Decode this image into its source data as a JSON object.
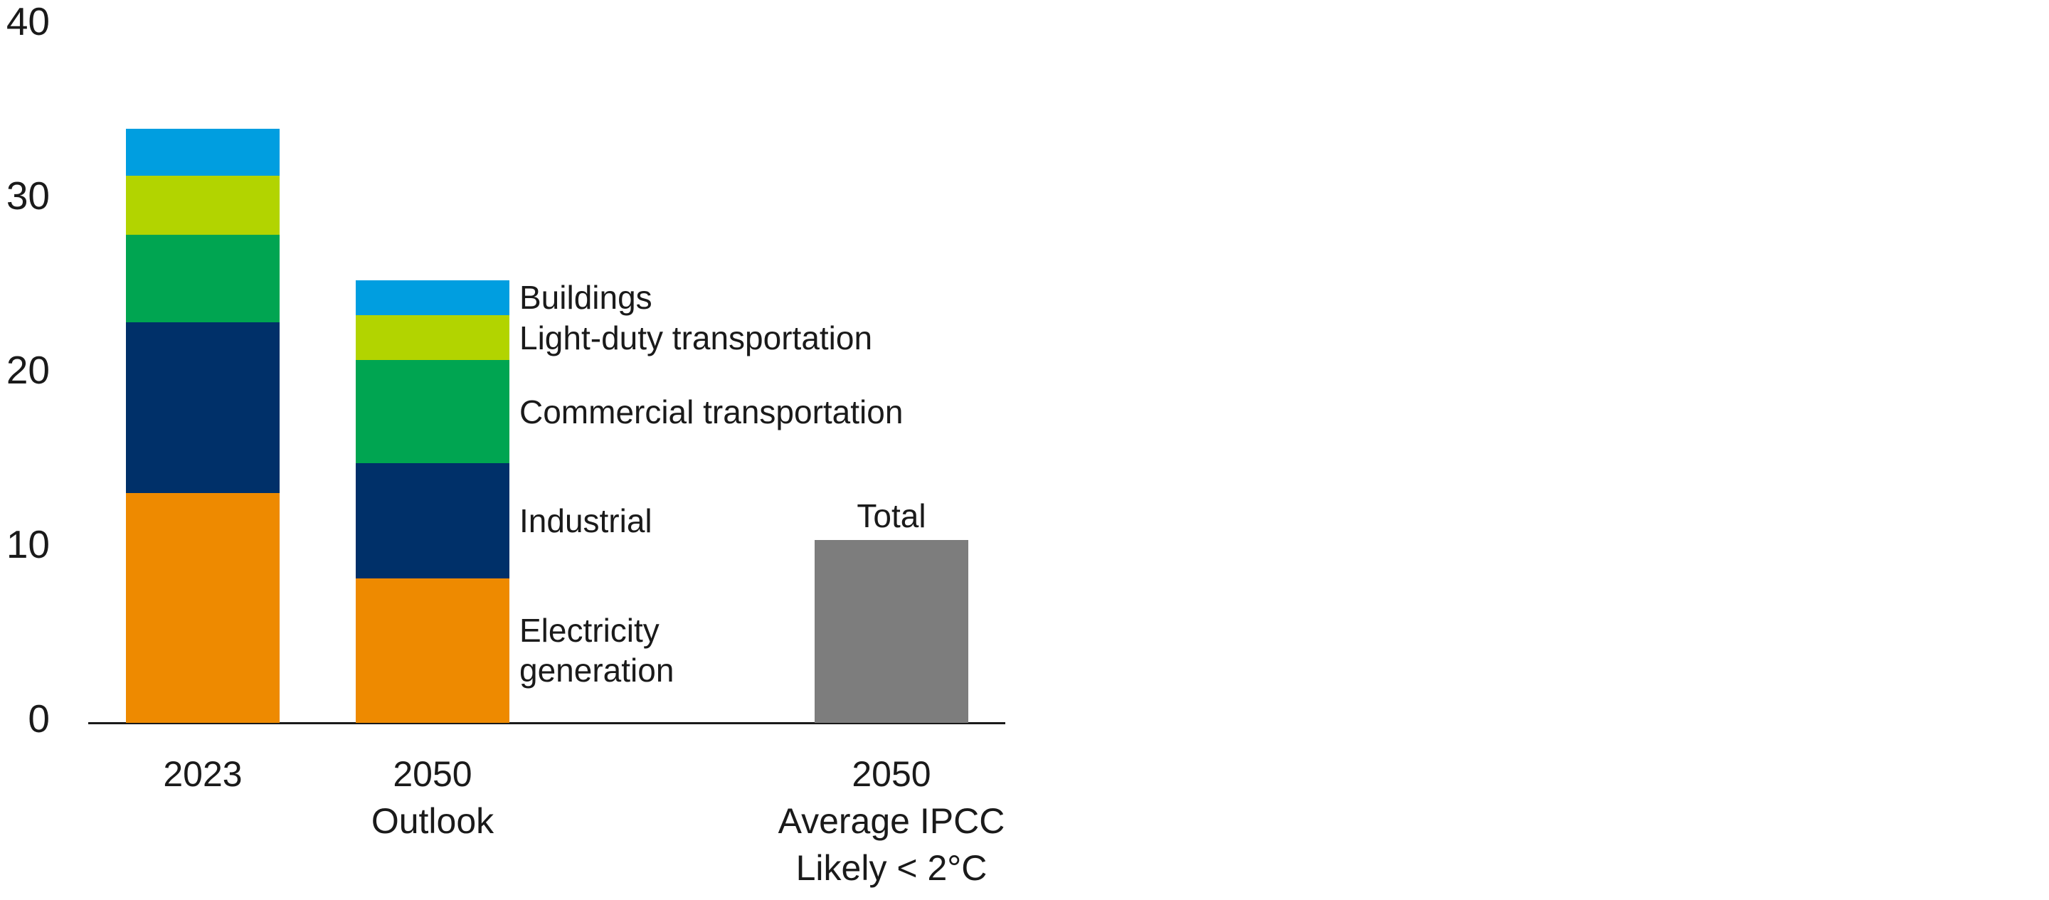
{
  "chart_data": {
    "type": "bar",
    "stacked": true,
    "title": "",
    "xlabel": "",
    "ylabel": "",
    "categories": [
      [
        "2023"
      ],
      [
        "2050",
        "Outlook"
      ],
      [
        "2050",
        "Average IPCC",
        "Likely < 2°C"
      ]
    ],
    "series": [
      {
        "name": "Electricity generation",
        "label_lines": [
          "Electricity",
          "generation"
        ],
        "color": "#EE8A00",
        "values": [
          13.2,
          8.3
        ]
      },
      {
        "name": "Industrial",
        "label_lines": [
          "Industrial"
        ],
        "color": "#003069",
        "values": [
          9.8,
          6.6
        ]
      },
      {
        "name": "Commercial transportation",
        "label_lines": [
          "Commercial transportation"
        ],
        "color": "#00A551",
        "values": [
          5.0,
          5.9
        ]
      },
      {
        "name": "Light-duty transportation",
        "label_lines": [
          "Light-duty transportation"
        ],
        "color": "#B2D400",
        "values": [
          3.4,
          2.6
        ]
      },
      {
        "name": "Buildings",
        "label_lines": [
          "Buildings"
        ],
        "color": "#009EE0",
        "values": [
          2.7,
          2.0
        ]
      }
    ],
    "series_order": "bottom-to-top",
    "totals": [
      34.1,
      25.4,
      10.5
    ],
    "total_bar": {
      "label": "Total",
      "value": 10.5,
      "color": "#7D7D7D",
      "category": "2050 Average IPCC Likely < 2°C"
    },
    "y_axis": {
      "ticks": [
        0,
        10,
        20,
        30,
        40
      ],
      "range": [
        0,
        40
      ]
    },
    "grid": false,
    "legend_position": "labels-right-of-2050-outlook-bar",
    "colors": {
      "axis": "#1A1A1A",
      "text": "#1A1A1A",
      "background": "#FFFFFF"
    }
  }
}
